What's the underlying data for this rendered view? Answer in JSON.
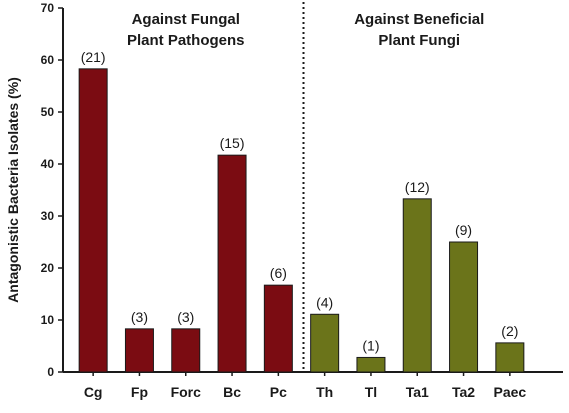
{
  "chart_data": {
    "type": "bar",
    "ylabel": "Antagonistic Bacteria Isolates (%)",
    "xlabel": "",
    "ylim": [
      0,
      70
    ],
    "yticks": [
      0,
      10,
      20,
      30,
      40,
      50,
      60,
      70
    ],
    "grid": false,
    "legend": "none",
    "categories": [
      "Cg",
      "Fp",
      "Forc",
      "Bc",
      "Pc",
      "Th",
      "Tl",
      "Ta1",
      "Ta2",
      "Paec"
    ],
    "values": [
      58.3,
      8.3,
      8.3,
      41.7,
      16.7,
      11.1,
      2.8,
      33.3,
      25.0,
      5.6
    ],
    "data_labels": [
      "(21)",
      "(3)",
      "(3)",
      "(15)",
      "(6)",
      "(4)",
      "(1)",
      "(12)",
      "(9)",
      "(2)"
    ],
    "groups": [
      {
        "title_lines": [
          "Against Fungal",
          "Plant Pathogens"
        ],
        "categories": [
          "Cg",
          "Fp",
          "Forc",
          "Bc",
          "Pc"
        ],
        "color": "#7b0c12"
      },
      {
        "title_lines": [
          "Against Beneficial",
          "Plant Fungi"
        ],
        "categories": [
          "Th",
          "Tl",
          "Ta1",
          "Ta2",
          "Paec"
        ],
        "color": "#6b741a"
      }
    ],
    "bar_outline_color": "#1a1a1a"
  }
}
